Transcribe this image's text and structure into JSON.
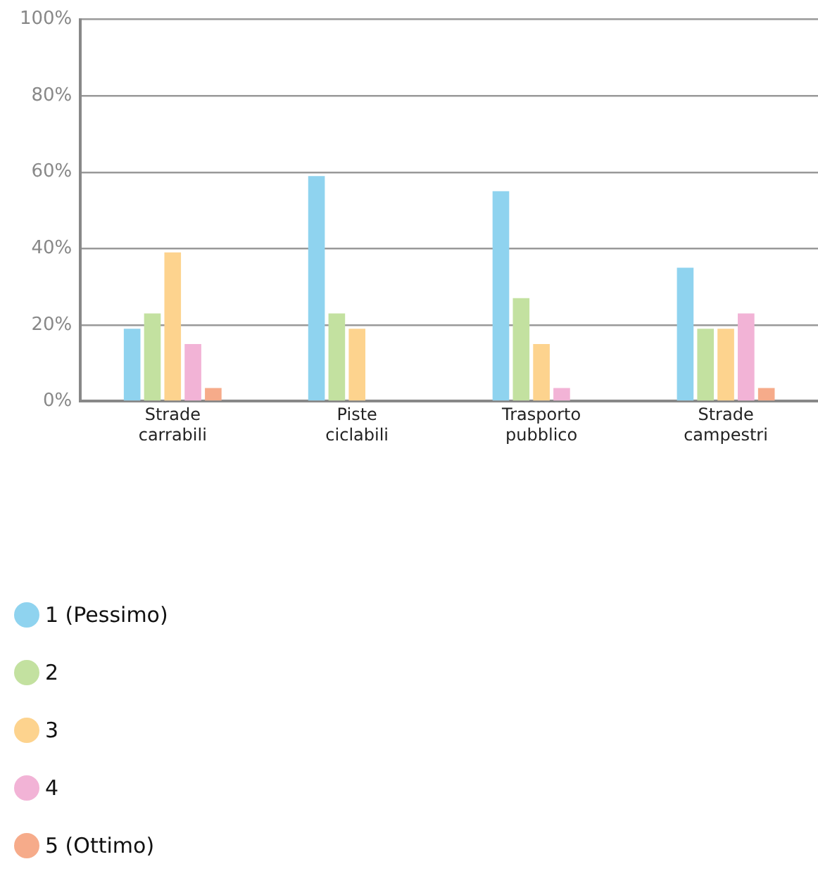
{
  "chart_data": {
    "type": "bar",
    "categories": [
      "Strade carrabili",
      "Piste ciclabili",
      "Trasporto pubblico",
      "Strade campestri"
    ],
    "series": [
      {
        "name": "1 (Pessimo)",
        "color": "#8fd3ef",
        "values": [
          19,
          59,
          55,
          35
        ]
      },
      {
        "name": "2",
        "color": "#c3e1a0",
        "values": [
          23,
          23,
          27,
          19
        ]
      },
      {
        "name": "3",
        "color": "#fdd38e",
        "values": [
          39,
          19,
          15,
          19
        ]
      },
      {
        "name": "4",
        "color": "#f2b3d6",
        "values": [
          15,
          null,
          3.5,
          23
        ]
      },
      {
        "name": "5 (Ottimo)",
        "color": "#f6ab8a",
        "values": [
          3.5,
          null,
          null,
          3.5
        ]
      }
    ],
    "ylim": [
      0,
      100
    ],
    "yticks": [
      {
        "value": 0,
        "label": "0%"
      },
      {
        "value": 20,
        "label": "20%"
      },
      {
        "value": 40,
        "label": "40%"
      },
      {
        "value": 60,
        "label": "60%"
      },
      {
        "value": 80,
        "label": "80%"
      },
      {
        "value": 100,
        "label": "100%"
      }
    ],
    "grid": "y",
    "legend": "bottom left"
  }
}
